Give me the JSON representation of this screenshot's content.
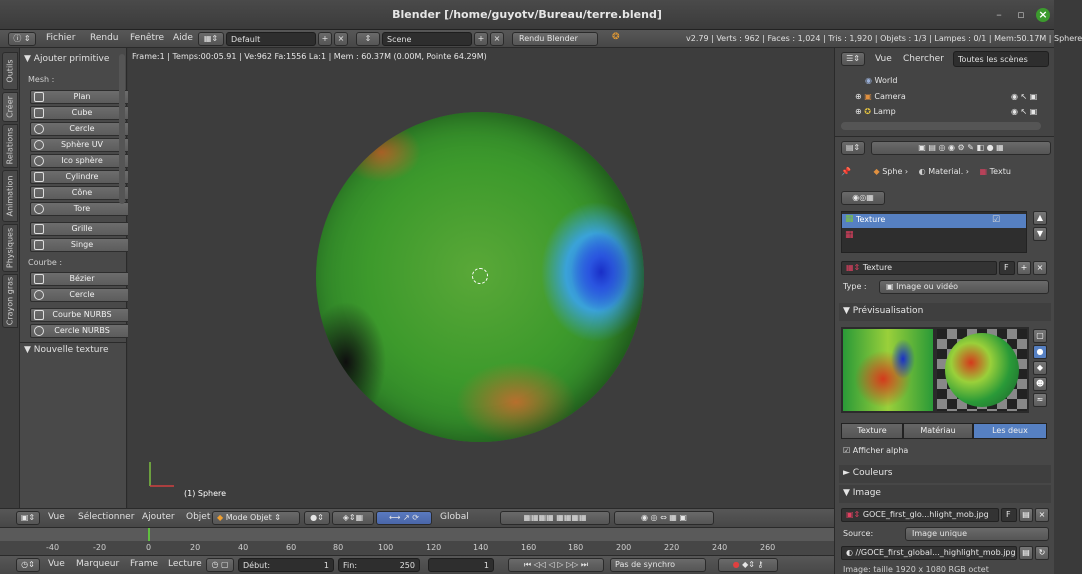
{
  "window": {
    "title": "Blender [/home/guyotv/Bureau/terre.blend]"
  },
  "info_header": {
    "menus": [
      "Fichier",
      "Rendu",
      "Fenêtre",
      "Aide"
    ],
    "layout": "Default",
    "scene": "Scene",
    "engine": "Rendu Blender",
    "stats": "v2.79 | Verts : 962 | Faces : 1,024 | Tris : 1,920 | Objets : 1/3 | Lampes : 0/1 | Mem:50.17M | Sphere"
  },
  "left_tabs": [
    "Outils",
    "Créer",
    "Relations",
    "Animation",
    "Physiques",
    "Crayon gras"
  ],
  "tool_panel": {
    "header": "▼ Ajouter primitive",
    "mesh_label": "Mesh :",
    "mesh_buttons": [
      "Plan",
      "Cube",
      "Cercle",
      "Sphère UV",
      "Ico sphère",
      "Cylindre",
      "Cône",
      "Tore"
    ],
    "more_buttons": [
      "Grille",
      "Singe"
    ],
    "curve_label": "Courbe :",
    "curve_buttons": [
      "Bézier",
      "Cercle"
    ],
    "nurbs_buttons": [
      "Courbe NURBS",
      "Cercle NURBS"
    ],
    "new_texture": "▼ Nouvelle texture"
  },
  "viewport": {
    "info": "Frame:1 | Temps:00:05.91 | Ve:962 Fa:1556 La:1 | Mem : 60.37M (0.00M, Pointe 64.29M)",
    "object_label": "(1) Sphere"
  },
  "view_header": {
    "menus": [
      "Vue",
      "Sélectionner",
      "Ajouter",
      "Objet"
    ],
    "mode": "Mode Objet",
    "orientation": "Global"
  },
  "timeline": {
    "ticks": [
      "-40",
      "-20",
      "0",
      "20",
      "40",
      "60",
      "80",
      "100",
      "120",
      "140",
      "160",
      "180",
      "200",
      "220",
      "240",
      "260"
    ],
    "menus": [
      "Vue",
      "Marqueur",
      "Frame",
      "Lecture"
    ],
    "start_label": "Début:",
    "start_value": "1",
    "end_label": "Fin:",
    "end_value": "250",
    "current": "1",
    "sync": "Pas de synchro"
  },
  "outliner": {
    "menus": [
      "Vue",
      "Chercher"
    ],
    "filter": "Toutes les scènes",
    "items": [
      "World",
      "Camera",
      "Lamp"
    ]
  },
  "properties": {
    "breadcrumb": [
      "Sphe",
      "Material.",
      "Textu"
    ],
    "texture_slot": "Texture",
    "texture_name": "Texture",
    "texture_f": "F",
    "type_label": "Type :",
    "type_value": "Image ou vidéo",
    "preview_section": "▼ Prévisualisation",
    "preview_tabs": [
      "Texture",
      "Matériau",
      "Les deux"
    ],
    "alpha_label": "Afficher alpha",
    "colors_section": "► Couleurs",
    "image_section": "▼ Image",
    "image_name": "GOCE_first_glo...hlight_mob.jpg",
    "image_f": "F",
    "source_label": "Source:",
    "source_value": "Image unique",
    "path": "//GOCE_first_global..._highlight_mob.jpg",
    "image_info": "Image: taille 1920 x 1080 RGB octet"
  },
  "colors": {
    "accent": "#5680c2",
    "green": "#3c9a2e"
  }
}
